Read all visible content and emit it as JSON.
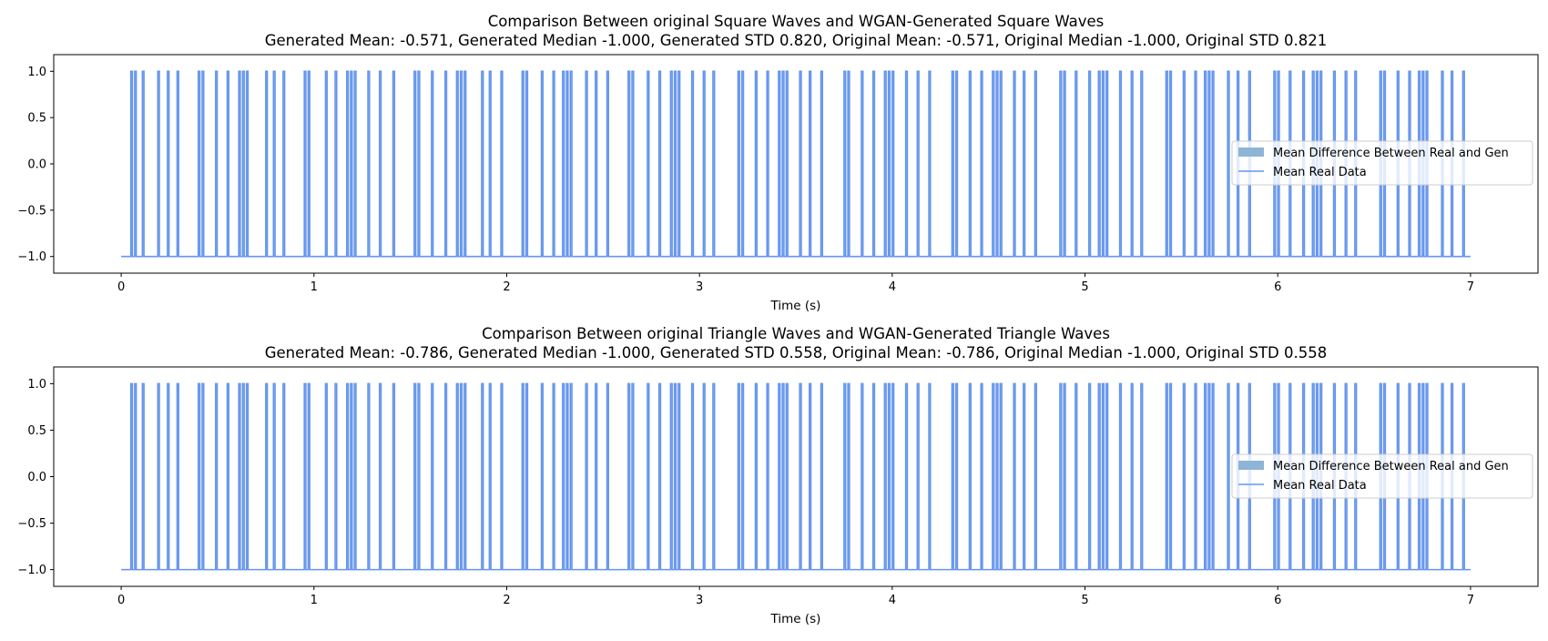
{
  "chart_data": [
    {
      "type": "line",
      "title": "Comparison Between original Square Waves and WGAN-Generated Square Waves",
      "subtitle": "Generated Mean: -0.571, Generated Median -1.000, Generated STD 0.820, Original Mean: -0.571, Original Median -1.000, Original STD 0.821",
      "xlabel": "Time (s)",
      "ylabel": "",
      "xlim": [
        -0.35,
        7.35
      ],
      "ylim": [
        -1.18,
        1.18
      ],
      "xticks": [
        "0",
        "1",
        "2",
        "3",
        "4",
        "5",
        "6",
        "7"
      ],
      "yticks": [
        "1.0",
        "0.5",
        "0.0",
        "−0.5",
        "−1.0"
      ],
      "grid": false,
      "legend_position": "center-right",
      "legend": [
        "Mean Difference Between Real and Gen",
        "Mean Real Data"
      ],
      "series": [
        {
          "name": "Mean Real Data",
          "color": "#6495ED",
          "baseline": -1.0,
          "high": 1.0,
          "pulse_times": [
            0.05,
            0.07,
            0.11,
            0.19,
            0.24,
            0.29,
            0.4,
            0.42,
            0.49,
            0.55,
            0.61,
            0.63,
            0.65,
            0.75,
            0.79,
            0.84,
            0.95,
            0.97,
            1.06,
            1.11,
            1.17,
            1.19,
            1.21,
            1.28,
            1.34,
            1.41,
            1.52,
            1.54,
            1.61,
            1.68,
            1.74,
            1.76,
            1.78,
            1.87,
            1.91,
            1.97,
            2.08,
            2.1,
            2.18,
            2.24,
            2.29,
            2.31,
            2.33,
            2.41,
            2.46,
            2.52,
            2.63,
            2.65,
            2.73,
            2.79,
            2.85,
            2.87,
            2.89,
            2.96,
            3.02,
            3.07,
            3.2,
            3.22,
            3.29,
            3.35,
            3.41,
            3.43,
            3.45,
            3.52,
            3.57,
            3.63,
            3.75,
            3.77,
            3.84,
            3.9,
            3.96,
            3.98,
            4.0,
            4.07,
            4.13,
            4.19,
            4.31,
            4.33,
            4.4,
            4.46,
            4.52,
            4.54,
            4.56,
            4.63,
            4.68,
            4.74,
            4.87,
            4.89,
            4.95,
            5.02,
            5.07,
            5.09,
            5.11,
            5.18,
            5.24,
            5.29,
            5.42,
            5.44,
            5.51,
            5.57,
            5.62,
            5.64,
            5.66,
            5.74,
            5.79,
            5.85,
            5.98,
            6.0,
            6.06,
            6.13,
            6.18,
            6.2,
            6.22,
            6.29,
            6.35,
            6.4,
            6.53,
            6.55,
            6.62,
            6.68,
            6.73,
            6.75,
            6.77,
            6.85,
            6.9,
            6.96
          ],
          "pulse_width_s": 0.008,
          "t_start": 0.0,
          "t_end": 7.0
        }
      ]
    },
    {
      "type": "line",
      "title": "Comparison Between original Triangle Waves and WGAN-Generated Triangle Waves",
      "subtitle": "Generated Mean: -0.786, Generated Median -1.000, Generated STD 0.558, Original Mean: -0.786, Original Median -1.000, Original STD 0.558",
      "xlabel": "Time (s)",
      "ylabel": "",
      "xlim": [
        -0.35,
        7.35
      ],
      "ylim": [
        -1.18,
        1.18
      ],
      "xticks": [
        "0",
        "1",
        "2",
        "3",
        "4",
        "5",
        "6",
        "7"
      ],
      "yticks": [
        "1.0",
        "0.5",
        "0.0",
        "−0.5",
        "−1.0"
      ],
      "grid": false,
      "legend_position": "center-right",
      "legend": [
        "Mean Difference Between Real and Gen",
        "Mean Real Data"
      ],
      "series": [
        {
          "name": "Mean Real Data",
          "color": "#6495ED",
          "baseline": -1.0,
          "high": 1.0,
          "pulse_times": [
            0.05,
            0.07,
            0.11,
            0.19,
            0.24,
            0.29,
            0.4,
            0.42,
            0.49,
            0.55,
            0.61,
            0.63,
            0.65,
            0.75,
            0.79,
            0.84,
            0.95,
            0.97,
            1.06,
            1.11,
            1.17,
            1.19,
            1.21,
            1.28,
            1.34,
            1.41,
            1.52,
            1.54,
            1.61,
            1.68,
            1.74,
            1.76,
            1.78,
            1.87,
            1.91,
            1.97,
            2.08,
            2.1,
            2.18,
            2.24,
            2.29,
            2.31,
            2.33,
            2.41,
            2.46,
            2.52,
            2.63,
            2.65,
            2.73,
            2.79,
            2.85,
            2.87,
            2.89,
            2.96,
            3.02,
            3.07,
            3.2,
            3.22,
            3.29,
            3.35,
            3.41,
            3.43,
            3.45,
            3.52,
            3.57,
            3.63,
            3.75,
            3.77,
            3.84,
            3.9,
            3.96,
            3.98,
            4.0,
            4.07,
            4.13,
            4.19,
            4.31,
            4.33,
            4.4,
            4.46,
            4.52,
            4.54,
            4.56,
            4.63,
            4.68,
            4.74,
            4.87,
            4.89,
            4.95,
            5.02,
            5.07,
            5.09,
            5.11,
            5.18,
            5.24,
            5.29,
            5.42,
            5.44,
            5.51,
            5.57,
            5.62,
            5.64,
            5.66,
            5.74,
            5.79,
            5.85,
            5.98,
            6.0,
            6.06,
            6.13,
            6.18,
            6.2,
            6.22,
            6.29,
            6.35,
            6.4,
            6.53,
            6.55,
            6.62,
            6.68,
            6.73,
            6.75,
            6.77,
            6.85,
            6.9,
            6.96
          ],
          "pulse_width_s": 0.008,
          "t_start": 0.0,
          "t_end": 7.0
        }
      ]
    }
  ],
  "legend_colors": {
    "mean_difference_patch": "#8EB4D6",
    "mean_real_line": "#6495ED"
  }
}
